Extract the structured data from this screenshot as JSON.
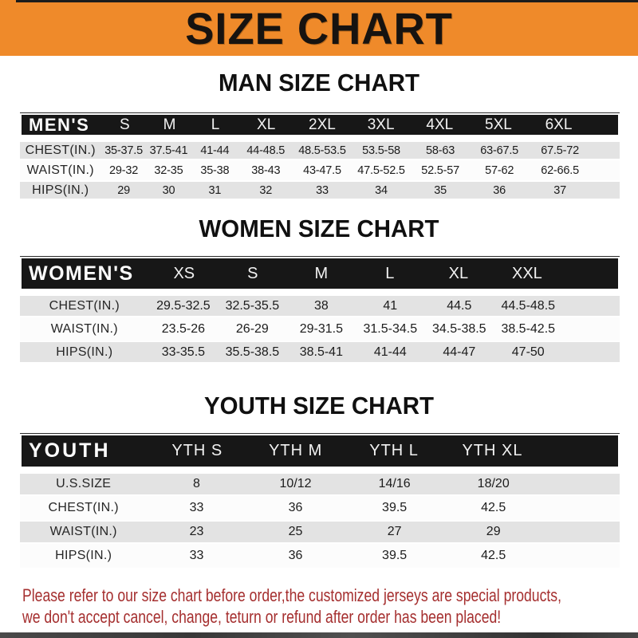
{
  "banner": {
    "title": "SIZE CHART"
  },
  "colors": {
    "accent_orange": "#EF8A2A",
    "bar_black": "#171717",
    "row_gray": "#E3E3E3",
    "row_white": "#FCFCFC",
    "note_red": "#A52F2F",
    "strip_dark": "#454545"
  },
  "sections": [
    {
      "id": "men",
      "title": "MAN SIZE CHART",
      "corner_label": "MEN'S",
      "columns": [
        "S",
        "M",
        "L",
        "XL",
        "2XL",
        "3XL",
        "4XL",
        "5XL",
        "6XL"
      ],
      "rows": [
        {
          "label": "CHEST(IN.)",
          "values": [
            "35-37.5",
            "37.5-41",
            "41-44",
            "44-48.5",
            "48.5-53.5",
            "53.5-58",
            "58-63",
            "63-67.5",
            "67.5-72"
          ]
        },
        {
          "label": "WAIST(IN.)",
          "values": [
            "29-32",
            "32-35",
            "35-38",
            "38-43",
            "43-47.5",
            "47.5-52.5",
            "52.5-57",
            "57-62",
            "62-66.5"
          ]
        },
        {
          "label": "HIPS(IN.)",
          "values": [
            "29",
            "30",
            "31",
            "32",
            "33",
            "34",
            "35",
            "36",
            "37"
          ]
        }
      ]
    },
    {
      "id": "women",
      "title": "WOMEN SIZE CHART",
      "corner_label": "WOMEN'S",
      "columns": [
        "XS",
        "S",
        "M",
        "L",
        "XL",
        "XXL"
      ],
      "rows": [
        {
          "label": "CHEST(IN.)",
          "values": [
            "29.5-32.5",
            "32.5-35.5",
            "38",
            "41",
            "44.5",
            "44.5-48.5"
          ]
        },
        {
          "label": "WAIST(IN.)",
          "values": [
            "23.5-26",
            "26-29",
            "29-31.5",
            "31.5-34.5",
            "34.5-38.5",
            "38.5-42.5"
          ]
        },
        {
          "label": "HIPS(IN.)",
          "values": [
            "33-35.5",
            "35.5-38.5",
            "38.5-41",
            "41-44",
            "44-47",
            "47-50"
          ]
        }
      ]
    },
    {
      "id": "youth",
      "title": "YOUTH SIZE CHART",
      "corner_label": "YOUTH",
      "columns": [
        "YTH S",
        "YTH M",
        "YTH L",
        "YTH XL"
      ],
      "rows": [
        {
          "label": "U.S.SIZE",
          "values": [
            "8",
            "10/12",
            "14/16",
            "18/20"
          ]
        },
        {
          "label": "CHEST(IN.)",
          "values": [
            "33",
            "36",
            "39.5",
            "42.5"
          ]
        },
        {
          "label": "WAIST(IN.)",
          "values": [
            "23",
            "25",
            "27",
            "29"
          ]
        },
        {
          "label": "HIPS(IN.)",
          "values": [
            "33",
            "36",
            "39.5",
            "42.5"
          ]
        }
      ]
    }
  ],
  "footer": {
    "line1": "Please refer to our size chart before order,the customized jerseys are special products,",
    "line2": "we don't accept cancel, change, teturn or refund after order has been placed!"
  }
}
